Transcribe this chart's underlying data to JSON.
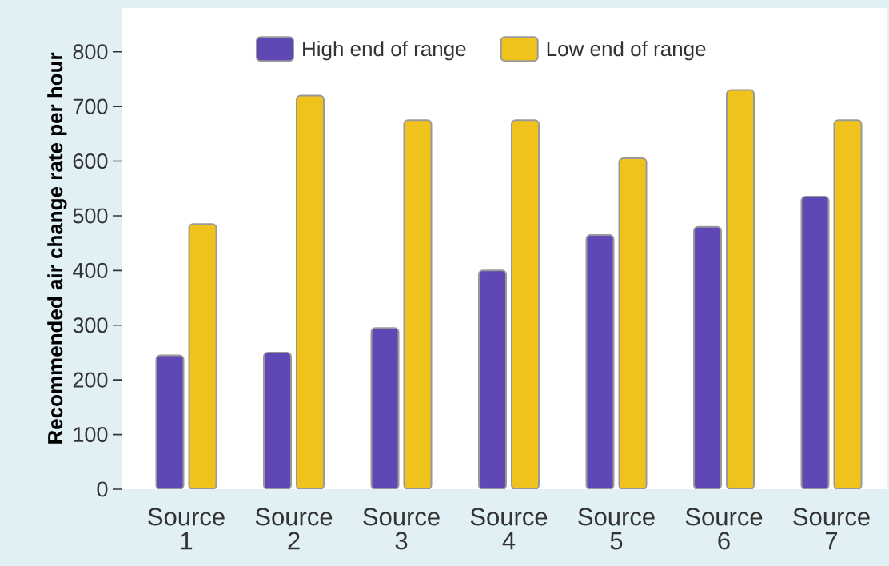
{
  "chart_data": {
    "type": "bar",
    "ylabel": "Recommended air change rate per hour",
    "categories": [
      "Source 1",
      "Source 2",
      "Source 3",
      "Source 4",
      "Source 5",
      "Source 6",
      "Source 7"
    ],
    "series": [
      {
        "name": "High end of range",
        "color": "#5f48b5",
        "values": [
          245,
          250,
          295,
          400,
          465,
          480,
          535
        ]
      },
      {
        "name": "Low end of range",
        "color": "#f0c21c",
        "values": [
          485,
          720,
          675,
          675,
          605,
          730,
          675
        ]
      }
    ],
    "ylim": [
      0,
      880
    ],
    "yticks": [
      0,
      100,
      200,
      300,
      400,
      500,
      600,
      700,
      800
    ],
    "legend": "top"
  }
}
